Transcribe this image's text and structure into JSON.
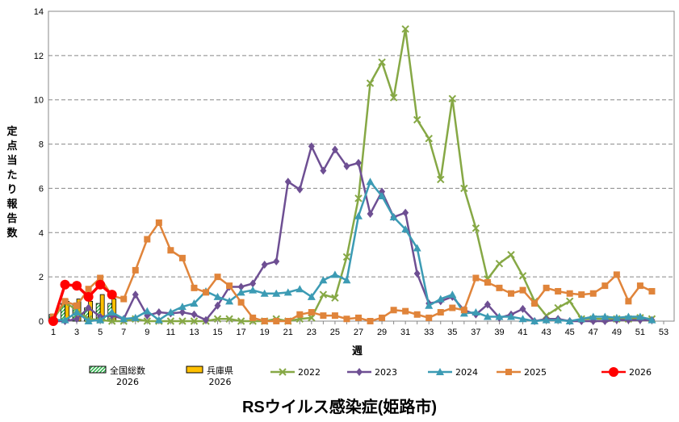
{
  "chart_data": {
    "type": "line",
    "title": "RSウイルス感染症(姫路市)",
    "xlabel": "週",
    "ylabel": "定点当たり報告数",
    "xlim": [
      1,
      53
    ],
    "ylim": [
      0,
      14
    ],
    "yticks": [
      0,
      2,
      4,
      6,
      8,
      10,
      12,
      14
    ],
    "xticks": [
      1,
      3,
      5,
      7,
      9,
      11,
      13,
      15,
      17,
      19,
      21,
      23,
      25,
      27,
      29,
      31,
      33,
      35,
      37,
      39,
      41,
      43,
      45,
      47,
      49,
      51,
      53
    ],
    "grid": "horizontal dashed",
    "legend_placement": "bottom",
    "bars": [
      {
        "name": "全国総数",
        "sub": "2026",
        "color": "#2db34a",
        "pattern": "hatched",
        "weeks": [
          1,
          2,
          3,
          4,
          5,
          6
        ],
        "values": [
          0.3,
          0.8,
          0.8,
          0.6,
          0.8,
          0.8
        ]
      },
      {
        "name": "兵庫県",
        "sub": "2026",
        "color": "#ffc000",
        "weeks": [
          1,
          2,
          3,
          4,
          5,
          6
        ],
        "values": [
          0.1,
          0.9,
          1.0,
          0.9,
          1.2,
          1.0
        ]
      }
    ],
    "series": [
      {
        "name": "2022",
        "color": "#86a845",
        "marker": "x",
        "values": [
          0.1,
          0.85,
          0.5,
          0.1,
          0.05,
          0,
          0,
          0.1,
          0,
          0,
          0,
          0,
          0,
          0,
          0.1,
          0.1,
          0,
          0,
          0,
          0.1,
          0,
          0.1,
          0.15,
          1.2,
          1.05,
          2.9,
          5.55,
          10.75,
          11.7,
          10.1,
          13.2,
          9.1,
          8.25,
          6.4,
          10.05,
          6.0,
          4.2,
          1.9,
          2.6,
          3.0,
          2.05,
          0.9,
          0.25,
          0.6,
          0.9,
          0.1,
          0.1,
          0.1,
          0.1,
          0.1,
          0.15,
          0.1
        ]
      },
      {
        "name": "2023",
        "color": "#6e4f93",
        "marker": "diamond",
        "values": [
          0,
          0,
          0.1,
          0.6,
          0.2,
          0.25,
          0.1,
          1.2,
          0.25,
          0.4,
          0.35,
          0.4,
          0.3,
          0.05,
          0.7,
          1.55,
          1.55,
          1.7,
          2.55,
          2.7,
          6.3,
          5.95,
          7.9,
          6.8,
          7.75,
          7.0,
          7.15,
          4.85,
          5.85,
          4.7,
          4.9,
          2.15,
          0.8,
          0.9,
          1.1,
          0.5,
          0.3,
          0.75,
          0.15,
          0.3,
          0.55,
          0,
          0.1,
          0.1,
          0,
          0,
          0,
          0,
          0.05,
          0.05,
          0.05,
          0.05
        ]
      },
      {
        "name": "2024",
        "color": "#3c9bb4",
        "marker": "triangle",
        "values": [
          0.05,
          0.05,
          0.4,
          0,
          0.05,
          0.4,
          0.1,
          0.15,
          0.45,
          0.05,
          0.4,
          0.65,
          0.8,
          1.35,
          1.1,
          0.9,
          1.3,
          1.4,
          1.25,
          1.25,
          1.3,
          1.45,
          1.1,
          1.85,
          2.1,
          1.85,
          4.75,
          6.3,
          5.65,
          4.7,
          4.15,
          3.3,
          0.7,
          1.0,
          1.2,
          0.35,
          0.4,
          0.2,
          0.2,
          0.2,
          0.1,
          0,
          0.05,
          0.05,
          0,
          0.1,
          0.2,
          0.2,
          0.15,
          0.2,
          0.2,
          0.05
        ]
      },
      {
        "name": "2025",
        "color": "#e0843a",
        "marker": "square",
        "values": [
          0.2,
          0.9,
          0.7,
          1.45,
          1.95,
          1.15,
          1.0,
          2.3,
          3.7,
          4.45,
          3.2,
          2.85,
          1.5,
          1.3,
          2.0,
          1.6,
          0.85,
          0.15,
          0,
          0,
          0,
          0.3,
          0.4,
          0.25,
          0.25,
          0.1,
          0.15,
          0,
          0.15,
          0.5,
          0.45,
          0.3,
          0.15,
          0.4,
          0.6,
          0.5,
          1.95,
          1.75,
          1.5,
          1.25,
          1.4,
          0.8,
          1.5,
          1.35,
          1.25,
          1.2,
          1.25,
          1.6,
          2.1,
          0.9,
          1.6,
          1.35
        ]
      },
      {
        "name": "2026",
        "color": "#ff0000",
        "marker": "circle",
        "values": [
          0,
          1.65,
          1.6,
          1.1,
          1.65,
          1.2
        ]
      }
    ]
  }
}
